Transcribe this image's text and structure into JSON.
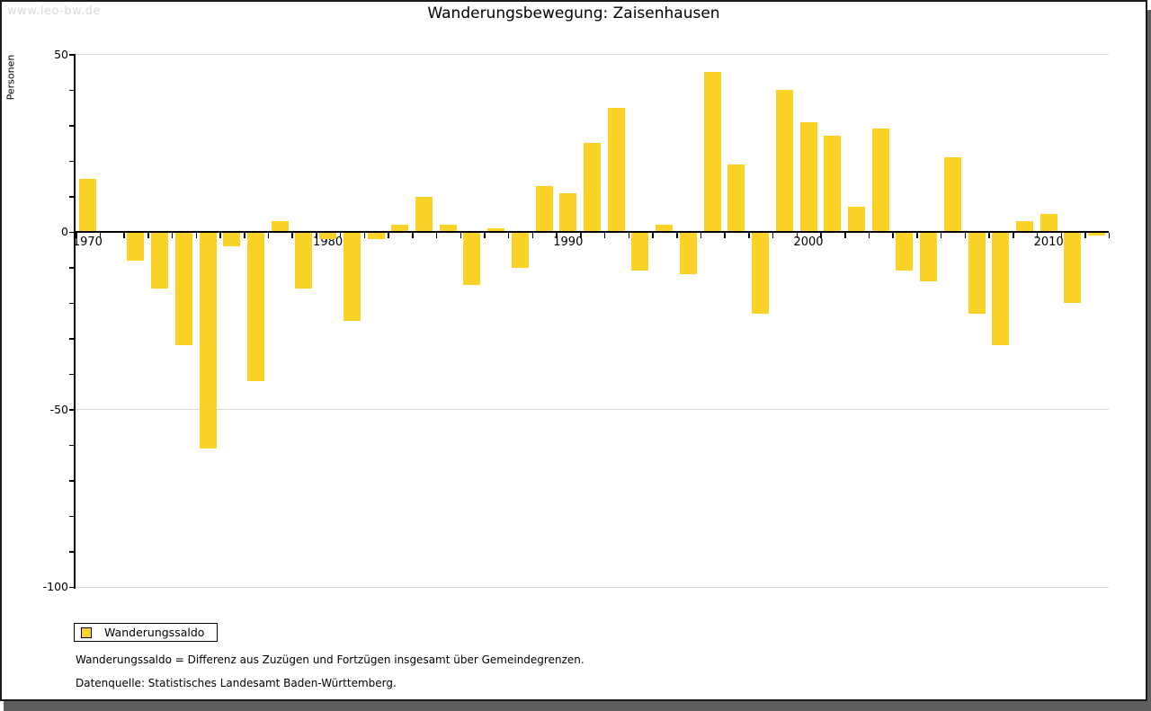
{
  "watermark": "www.leo-bw.de",
  "title": "Wanderungsbewegung: Zaisenhausen",
  "chart_data": {
    "type": "bar",
    "title": "Wanderungsbewegung: Zaisenhausen",
    "xlabel": "",
    "ylabel": "Personen",
    "series_name": "Wanderungssaldo",
    "ylim": [
      -100,
      50
    ],
    "grid": true,
    "gridline_values": [
      50,
      -50,
      -100
    ],
    "ytick_labels": [
      "50",
      "0",
      "-50",
      "-100"
    ],
    "ytick_values": [
      50,
      0,
      -50,
      -100
    ],
    "yminor_tick_step": 10,
    "xtick_labels": [
      "1970",
      "1980",
      "1990",
      "2000",
      "2010"
    ],
    "xtick_years": [
      1970,
      1980,
      1990,
      2000,
      2010
    ],
    "bar_color": "#FBD226",
    "years": [
      1970,
      1971,
      1972,
      1973,
      1974,
      1975,
      1976,
      1977,
      1978,
      1979,
      1980,
      1981,
      1982,
      1983,
      1984,
      1985,
      1986,
      1987,
      1988,
      1989,
      1990,
      1991,
      1992,
      1993,
      1994,
      1995,
      1996,
      1997,
      1998,
      1999,
      2000,
      2001,
      2002,
      2003,
      2004,
      2005,
      2006,
      2007,
      2008,
      2009,
      2010,
      2011,
      2012
    ],
    "values": [
      15,
      0,
      -8,
      -16,
      -32,
      -61,
      -4,
      -42,
      3,
      -16,
      -2,
      -25,
      -2,
      2,
      10,
      2,
      -15,
      1,
      -10,
      13,
      11,
      25,
      35,
      -11,
      2,
      -12,
      45,
      19,
      -23,
      40,
      31,
      27,
      7,
      29,
      -11,
      -14,
      21,
      -23,
      -32,
      3,
      5,
      -20,
      -1
    ]
  },
  "legend": {
    "label": "Wanderungssaldo",
    "swatch_color": "#FBD226"
  },
  "footnotes": {
    "line1": "Wanderungssaldo = Differenz aus Zuzügen und Fortzügen insgesamt über Gemeindegrenzen.",
    "line2": "Datenquelle: Statistisches Landesamt Baden-Württemberg."
  }
}
